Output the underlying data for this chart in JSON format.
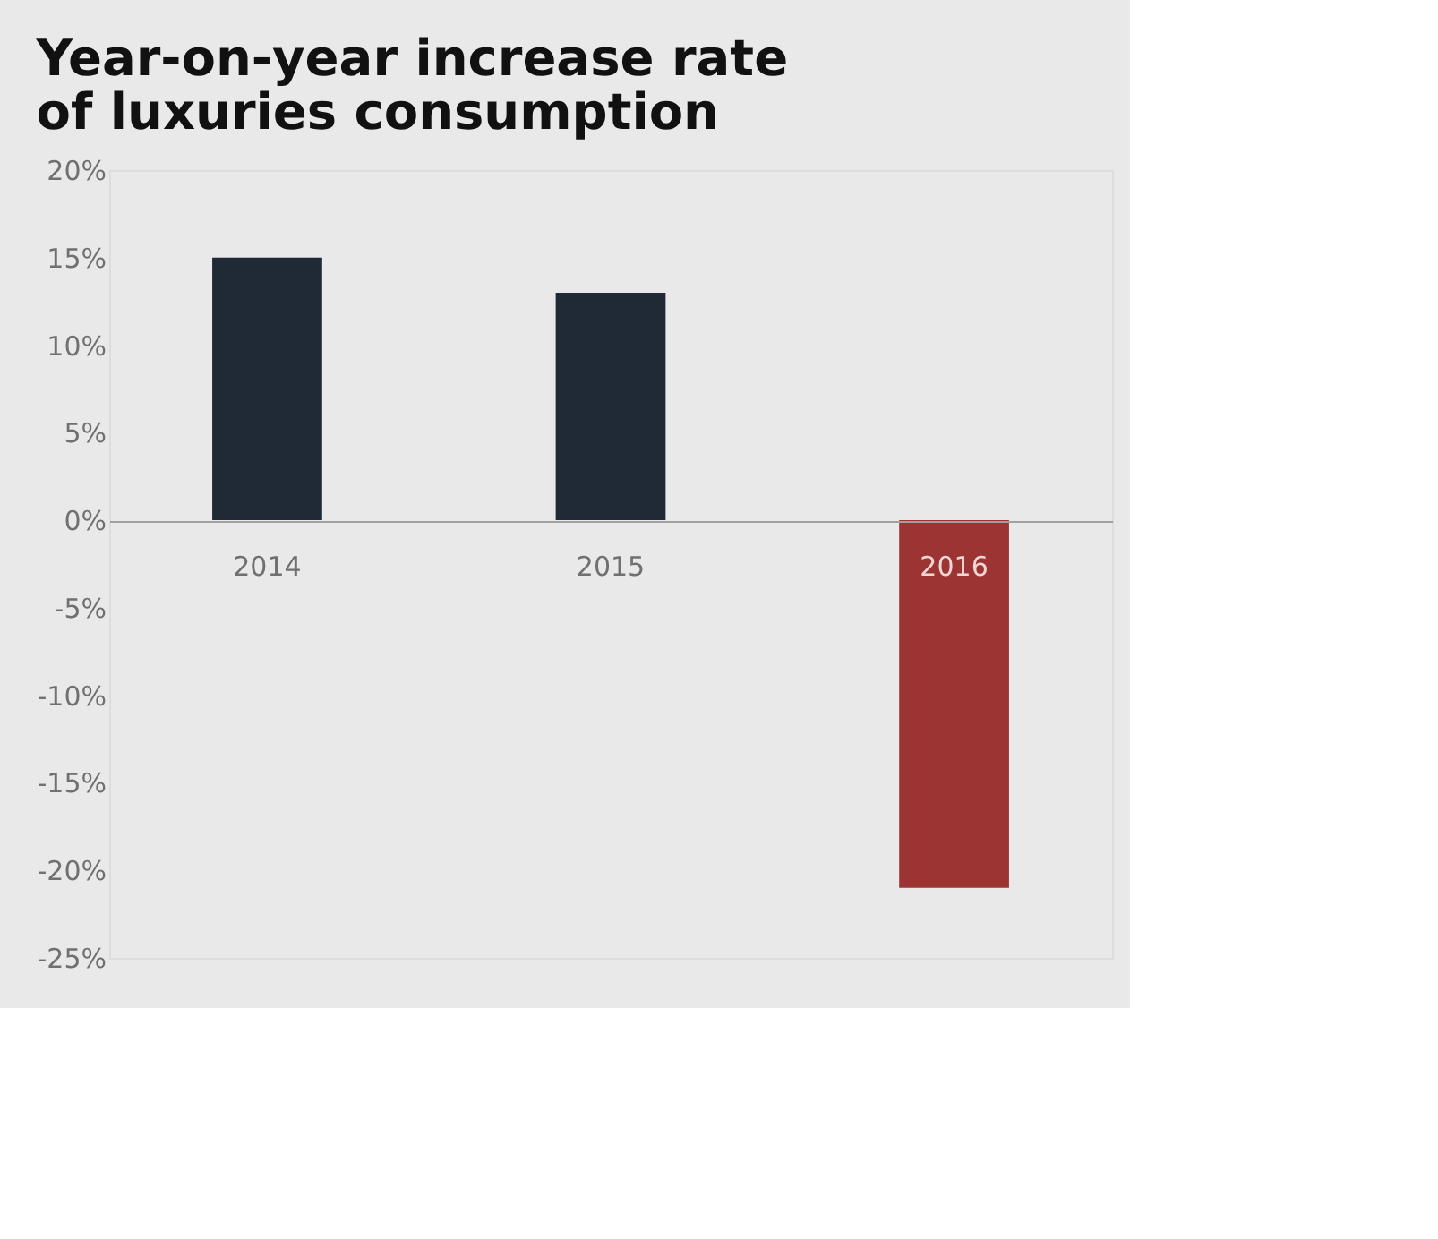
{
  "chart_data": {
    "type": "bar",
    "title": [
      "Year-on-year increase rate",
      "of luxuries consumption"
    ],
    "categories": [
      "2014",
      "2015",
      "2016"
    ],
    "values": [
      15,
      13,
      -21
    ],
    "colors": [
      "#1f2a36",
      "#1f2a36",
      "#9b3432"
    ],
    "ylim": [
      -25,
      20
    ],
    "yticks": [
      {
        "value": -25,
        "label": "-25%"
      },
      {
        "value": -20,
        "label": "-20%"
      },
      {
        "value": -15,
        "label": "-15%"
      },
      {
        "value": -10,
        "label": "-10%"
      },
      {
        "value": -5,
        "label": "-5%"
      },
      {
        "value": 0,
        "label": "0%"
      },
      {
        "value": 5,
        "label": "5%"
      },
      {
        "value": 10,
        "label": "10%"
      },
      {
        "value": 15,
        "label": "15%"
      },
      {
        "value": 20,
        "label": "20%"
      }
    ],
    "grid": false
  }
}
